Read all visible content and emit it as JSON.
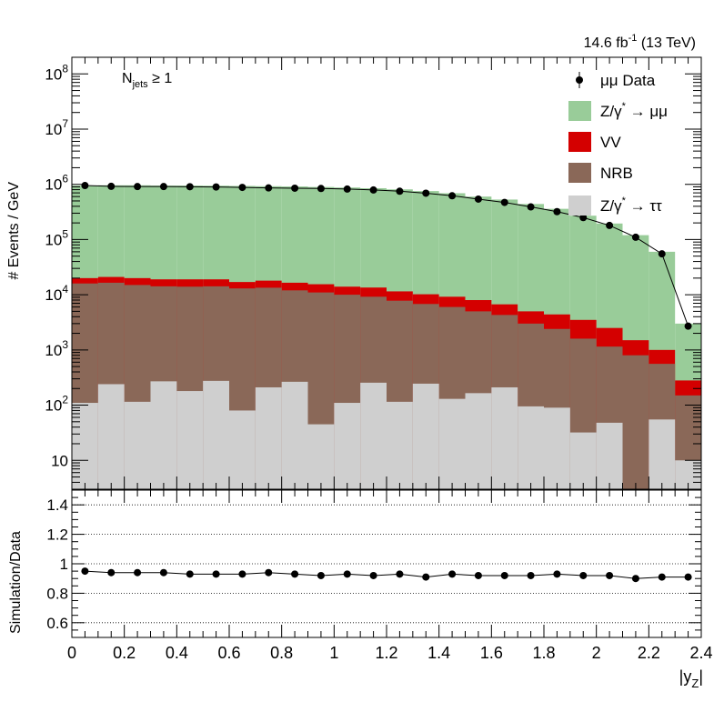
{
  "header": {
    "lumi": "14.6 fb",
    "lumi_sup": "-1",
    "energy": " (13 TeV)"
  },
  "annotation": {
    "n": "N",
    "sub": "jets",
    "rest": " ≥ 1"
  },
  "chart_data": [
    {
      "type": "stacked-histogram",
      "ylabel": "# Events / GeV",
      "yscale": "log",
      "ylim": [
        3,
        200000000
      ],
      "xlim": [
        0,
        2.4
      ],
      "bin_width": 0.1,
      "bin_low_edges": [
        0.0,
        0.1,
        0.2,
        0.3,
        0.4,
        0.5,
        0.6,
        0.7,
        0.8,
        0.9,
        1.0,
        1.1,
        1.2,
        1.3,
        1.4,
        1.5,
        1.6,
        1.7,
        1.8,
        1.9,
        2.0,
        2.1,
        2.2,
        2.3
      ],
      "ytick_labels": [
        "10",
        "10",
        "10",
        "10",
        "10",
        "10",
        "10",
        "10"
      ],
      "ytick_exponents": [
        "",
        "2",
        "3",
        "4",
        "5",
        "6",
        "7",
        "8"
      ],
      "ytick_values": [
        10,
        100,
        1000,
        10000,
        100000,
        1000000,
        10000000,
        100000000
      ],
      "stack_order_bottom_to_top": [
        "Z/γ* → ττ",
        "NRB",
        "VV",
        "Z/γ* → μμ"
      ],
      "series": [
        {
          "name": "Z/γ* → ττ",
          "color": "#cfcfcf",
          "stack_top": [
            110,
            240,
            115,
            270,
            180,
            275,
            80,
            210,
            265,
            45,
            110,
            255,
            115,
            245,
            130,
            165,
            210,
            95,
            90,
            32,
            48,
            3,
            55,
            10
          ]
        },
        {
          "name": "NRB",
          "color": "#8a6858",
          "stack_top": [
            16000,
            16500,
            15000,
            14200,
            14000,
            14200,
            13000,
            13400,
            12000,
            11000,
            10000,
            9200,
            7800,
            6800,
            6000,
            5000,
            4300,
            3000,
            2400,
            1600,
            1150,
            800,
            560,
            150
          ]
        },
        {
          "name": "VV",
          "color": "#d40000",
          "stack_top": [
            20000,
            21000,
            20000,
            19000,
            19000,
            19000,
            17000,
            18000,
            16500,
            15500,
            14000,
            13500,
            11500,
            10200,
            9200,
            8000,
            6700,
            5000,
            4400,
            3500,
            2500,
            1500,
            1000,
            280
          ]
        },
        {
          "name": "Z/γ* → μμ",
          "color": "#99cc99",
          "stack_top": [
            950000,
            960000,
            960000,
            950000,
            950000,
            945000,
            935000,
            925000,
            915000,
            895000,
            875000,
            850000,
            810000,
            755000,
            690000,
            600000,
            530000,
            440000,
            360000,
            270000,
            195000,
            120000,
            60000,
            3000
          ]
        },
        {
          "name": "μμ Data",
          "color": "#000000",
          "values": [
            950000,
            920000,
            910000,
            910000,
            905000,
            895000,
            880000,
            860000,
            850000,
            840000,
            820000,
            790000,
            750000,
            690000,
            620000,
            540000,
            470000,
            390000,
            320000,
            250000,
            180000,
            110000,
            55000,
            2700
          ]
        }
      ],
      "legend": [
        "μμ Data",
        "Z/γ* → μμ",
        "VV",
        "NRB",
        "Z/γ* → ττ"
      ],
      "legend_placement": "top-right"
    },
    {
      "type": "scatter",
      "ylabel": "Simulation/Data",
      "xlabel": "|y",
      "xlabel_sub": "Z",
      "xlabel_close": "|",
      "ylim": [
        0.5,
        1.5
      ],
      "xlim": [
        0,
        2.4
      ],
      "grid": "horizontal dotted",
      "ytick_labels": [
        "0.6",
        "0.8",
        "1",
        "1.2",
        "1.4"
      ],
      "ytick_values": [
        0.6,
        0.8,
        1.0,
        1.2,
        1.4
      ],
      "xtick_labels": [
        "0",
        "0.2",
        "0.4",
        "0.6",
        "0.8",
        "1",
        "1.2",
        "1.4",
        "1.6",
        "1.8",
        "2",
        "2.2",
        "2.4"
      ],
      "xtick_values": [
        0,
        0.2,
        0.4,
        0.6,
        0.8,
        1.0,
        1.2,
        1.4,
        1.6,
        1.8,
        2.0,
        2.2,
        2.4
      ],
      "x": [
        0.05,
        0.15,
        0.25,
        0.35,
        0.45,
        0.55,
        0.65,
        0.75,
        0.85,
        0.95,
        1.05,
        1.15,
        1.25,
        1.35,
        1.45,
        1.55,
        1.65,
        1.75,
        1.85,
        1.95,
        2.05,
        2.15,
        2.25,
        2.35
      ],
      "values": [
        0.95,
        0.94,
        0.94,
        0.94,
        0.93,
        0.93,
        0.93,
        0.94,
        0.93,
        0.92,
        0.93,
        0.92,
        0.93,
        0.91,
        0.93,
        0.92,
        0.92,
        0.92,
        0.93,
        0.92,
        0.92,
        0.9,
        0.91,
        0.91
      ]
    }
  ]
}
